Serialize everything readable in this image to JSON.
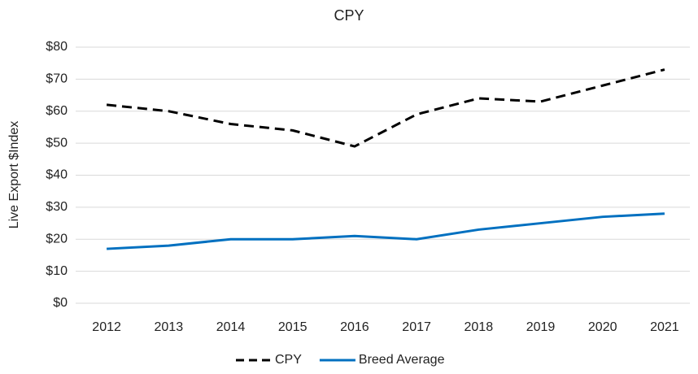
{
  "chart_data": {
    "type": "line",
    "title": "CPY",
    "y_label": "Live Export $Index",
    "categories": [
      "2012",
      "2013",
      "2014",
      "2015",
      "2016",
      "2017",
      "2018",
      "2019",
      "2020",
      "2021"
    ],
    "series": [
      {
        "name": "CPY",
        "color": "#000000",
        "style": "dashed",
        "values": [
          62,
          60,
          56,
          54,
          49,
          59,
          64,
          63,
          68,
          73
        ]
      },
      {
        "name": "Breed Average",
        "color": "#0070c0",
        "style": "solid",
        "values": [
          17,
          18,
          20,
          20,
          21,
          20,
          23,
          25,
          27,
          28
        ]
      }
    ],
    "ylim": [
      0,
      80
    ],
    "yticks": [
      {
        "value": 0,
        "label": "$0"
      },
      {
        "value": 10,
        "label": "$10"
      },
      {
        "value": 20,
        "label": "$20"
      },
      {
        "value": 30,
        "label": "$30"
      },
      {
        "value": 40,
        "label": "$40"
      },
      {
        "value": 50,
        "label": "$50"
      },
      {
        "value": 60,
        "label": "$60"
      },
      {
        "value": 70,
        "label": "$70"
      },
      {
        "value": 80,
        "label": "$80"
      }
    ],
    "grid": true,
    "legend": "bottom"
  }
}
